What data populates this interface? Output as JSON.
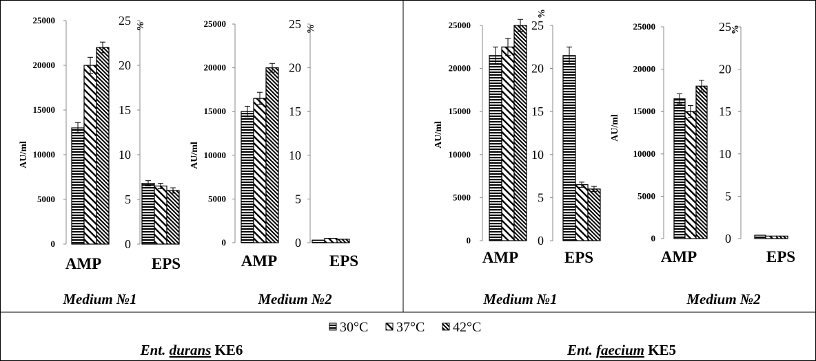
{
  "legend": {
    "items": [
      {
        "label": "30°C",
        "pattern": "horizontal"
      },
      {
        "label": "37°C",
        "pattern": "diag-sparse"
      },
      {
        "label": "42°C",
        "pattern": "diag-dense"
      }
    ]
  },
  "strain_captions": [
    {
      "genus": "Ent.",
      "species": "durans",
      "code": "KE6"
    },
    {
      "genus": "Ent.",
      "species": "faecium",
      "code": "KE5"
    }
  ],
  "chart_data": [
    {
      "type": "bar",
      "title": "Medium №1",
      "strain": "Ent. durans KE6",
      "categories": [
        "AMP",
        "EPS"
      ],
      "left_axis": {
        "label": "AU/ml",
        "ylim": [
          0,
          25000
        ],
        "ticks": [
          "0",
          "5000",
          "10000",
          "15000",
          "20000",
          "25000"
        ]
      },
      "right_axis": {
        "label": "%",
        "ylim": [
          0,
          25
        ],
        "ticks": [
          "0",
          "5",
          "10",
          "15",
          "20",
          "25"
        ]
      },
      "series": [
        {
          "name": "30°C",
          "values": [
            13000,
            6.8
          ],
          "errors": [
            600,
            0.3
          ]
        },
        {
          "name": "37°C",
          "values": [
            20000,
            6.5
          ],
          "errors": [
            900,
            0.3
          ]
        },
        {
          "name": "42°C",
          "values": [
            22000,
            6.0
          ],
          "errors": [
            600,
            0.3
          ]
        }
      ]
    },
    {
      "type": "bar",
      "title": "Medium №2",
      "strain": "Ent. durans KE6",
      "categories": [
        "AMP",
        "EPS"
      ],
      "left_axis": {
        "label": "AU/ml",
        "ylim": [
          0,
          25000
        ],
        "ticks": [
          "0",
          "5000",
          "10000",
          "15000",
          "20000",
          "25000"
        ]
      },
      "right_axis": {
        "label": "%",
        "ylim": [
          0,
          25
        ],
        "ticks": [
          "0",
          "5",
          "10",
          "15",
          "20",
          "25"
        ]
      },
      "series": [
        {
          "name": "30°C",
          "values": [
            15000,
            0.3
          ],
          "errors": [
            600,
            0
          ]
        },
        {
          "name": "37°C",
          "values": [
            16500,
            0.5
          ],
          "errors": [
            700,
            0
          ]
        },
        {
          "name": "42°C",
          "values": [
            20000,
            0.4
          ],
          "errors": [
            500,
            0
          ]
        }
      ]
    },
    {
      "type": "bar",
      "title": "Medium №1",
      "strain": "Ent. faecium KE5",
      "categories": [
        "AMP",
        "EPS"
      ],
      "left_axis": {
        "label": "AU/ml",
        "ylim": [
          0,
          25000
        ],
        "ticks": [
          "0",
          "5000",
          "10000",
          "15000",
          "20000",
          "25000"
        ]
      },
      "right_axis": {
        "label": "%",
        "ylim": [
          0,
          25
        ],
        "ticks": [
          "0",
          "5",
          "10",
          "15",
          "20",
          "25"
        ]
      },
      "series": [
        {
          "name": "30°C",
          "values": [
            21500,
            21.5
          ],
          "errors": [
            1000,
            1.0
          ]
        },
        {
          "name": "37°C",
          "values": [
            22500,
            6.5
          ],
          "errors": [
            1000,
            0.3
          ]
        },
        {
          "name": "42°C",
          "values": [
            25000,
            6.0
          ],
          "errors": [
            700,
            0.3
          ]
        }
      ]
    },
    {
      "type": "bar",
      "title": "Medium №2",
      "strain": "Ent. faecium KE5",
      "categories": [
        "AMP",
        "EPS"
      ],
      "left_axis": {
        "label": "AU/ml",
        "ylim": [
          0,
          25000
        ],
        "ticks": [
          "0",
          "5000",
          "10000",
          "15000",
          "20000",
          "25000"
        ]
      },
      "right_axis": {
        "label": "%",
        "ylim": [
          0,
          25
        ],
        "ticks": [
          "0",
          "5",
          "10",
          "15",
          "20",
          "25"
        ]
      },
      "series": [
        {
          "name": "30°C",
          "values": [
            16500,
            0.4
          ],
          "errors": [
            600,
            0
          ]
        },
        {
          "name": "37°C",
          "values": [
            15000,
            0.3
          ],
          "errors": [
            700,
            0
          ]
        },
        {
          "name": "42°C",
          "values": [
            18000,
            0.3
          ],
          "errors": [
            700,
            0
          ]
        }
      ]
    }
  ]
}
